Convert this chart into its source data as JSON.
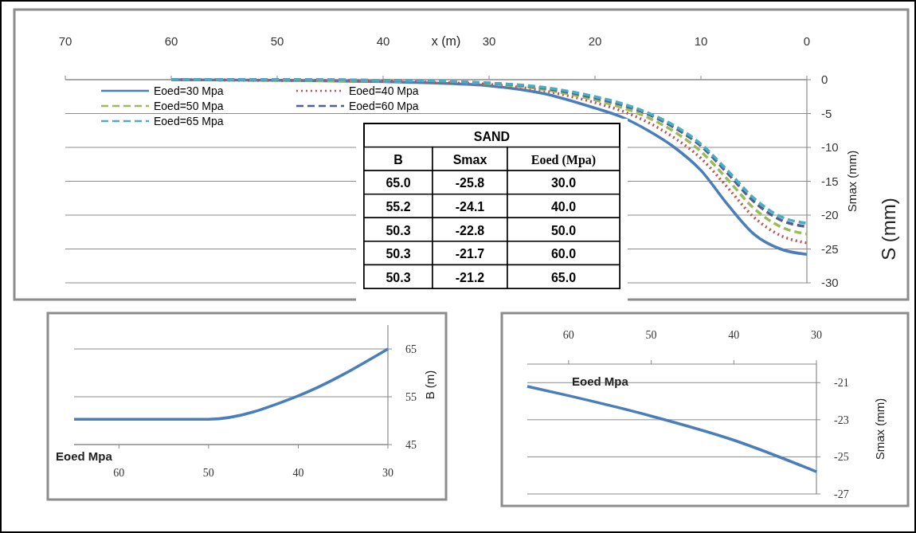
{
  "chart_data": [
    {
      "type": "line",
      "xlabel": "x (m)",
      "ylabel": "Smax (mm)",
      "annotations": [
        "S (mm)",
        "SAND",
        "B",
        "Smax",
        "Eoed (Mpa)",
        "65.0",
        "-25.8",
        "30.0",
        "55.2",
        "-24.1",
        "40.0",
        "50.3",
        "-22.8",
        "50.0",
        "50.3",
        "-21.7",
        "60.0",
        "50.3",
        "-21.2",
        "65.0"
      ],
      "x": [
        60,
        50,
        40,
        35,
        30,
        25,
        20,
        17.5,
        15,
        12.5,
        10,
        7.5,
        5,
        2.5,
        0
      ],
      "xlim": [
        70,
        0
      ],
      "xticks": [
        70,
        60,
        50,
        40,
        30,
        20,
        10,
        0
      ],
      "ylim": [
        -30,
        0
      ],
      "yticks": [
        0,
        -5,
        -10,
        -15,
        -20,
        -25,
        -30
      ],
      "grid": "y",
      "legend": "top left",
      "marker": "none",
      "series": [
        {
          "name": "Eoed=30 Mpa",
          "color": "#4a7ebb",
          "line_style": "solid",
          "values": [
            0,
            -0.1,
            -0.3,
            -0.5,
            -0.9,
            -2.0,
            -4.2,
            -5.5,
            -7.5,
            -10.0,
            -13.4,
            -18.4,
            -22.8,
            -25.0,
            -25.8
          ]
        },
        {
          "name": "Eoed=40 Mpa",
          "color": "#c0504d",
          "line_style": "dotted",
          "values": [
            0,
            -0.1,
            -0.2,
            -0.4,
            -0.7,
            -1.6,
            -3.4,
            -4.6,
            -6.3,
            -8.6,
            -11.6,
            -15.9,
            -20.3,
            -23.0,
            -24.1
          ]
        },
        {
          "name": "Eoed=50 Mpa",
          "color": "#9bbb59",
          "line_style": "dashed",
          "values": [
            0,
            -0.1,
            -0.2,
            -0.3,
            -0.6,
            -1.4,
            -3.0,
            -4.1,
            -5.6,
            -7.7,
            -10.6,
            -14.7,
            -19.0,
            -21.7,
            -22.8
          ]
        },
        {
          "name": "Eoed=60 Mpa",
          "color": "#4f5f8f",
          "line_style": "dashed",
          "values": [
            0,
            0,
            -0.1,
            -0.3,
            -0.5,
            -1.2,
            -2.7,
            -3.7,
            -5.1,
            -7.1,
            -9.8,
            -13.8,
            -18.0,
            -20.7,
            -21.7
          ]
        },
        {
          "name": "Eoed=65 Mpa",
          "color": "#4bacc6",
          "line_style": "dashed",
          "values": [
            0,
            0,
            -0.1,
            -0.2,
            -0.5,
            -1.1,
            -2.5,
            -3.5,
            -4.9,
            -6.8,
            -9.5,
            -13.4,
            -17.5,
            -20.2,
            -21.2
          ]
        }
      ]
    },
    {
      "type": "line",
      "xlabel": "Eoed Mpa",
      "ylabel": "B (m)",
      "x": [
        65,
        60,
        50,
        40,
        30
      ],
      "xlim": [
        65,
        30
      ],
      "xticks": [
        60,
        50,
        40,
        30
      ],
      "ylim": [
        45,
        70
      ],
      "yticks": [
        45,
        55,
        65
      ],
      "grid": "y",
      "marker": "none",
      "series": [
        {
          "color": "#4a7ebb",
          "line_style": "solid",
          "values": [
            50.3,
            50.3,
            50.3,
            55.2,
            65.0
          ]
        }
      ]
    },
    {
      "type": "line",
      "xlabel": "Eoed Mpa",
      "ylabel": "Smax (mm)",
      "x": [
        65,
        60,
        50,
        40,
        30
      ],
      "xlim": [
        65,
        30
      ],
      "xticks": [
        60,
        50,
        40,
        30
      ],
      "ylim": [
        -27,
        -20
      ],
      "yticks": [
        -21,
        -23,
        -25,
        -27
      ],
      "grid": "y",
      "marker": "none",
      "series": [
        {
          "color": "#4a7ebb",
          "line_style": "solid",
          "values": [
            -21.2,
            -21.7,
            -22.8,
            -24.1,
            -25.8
          ]
        }
      ]
    }
  ]
}
